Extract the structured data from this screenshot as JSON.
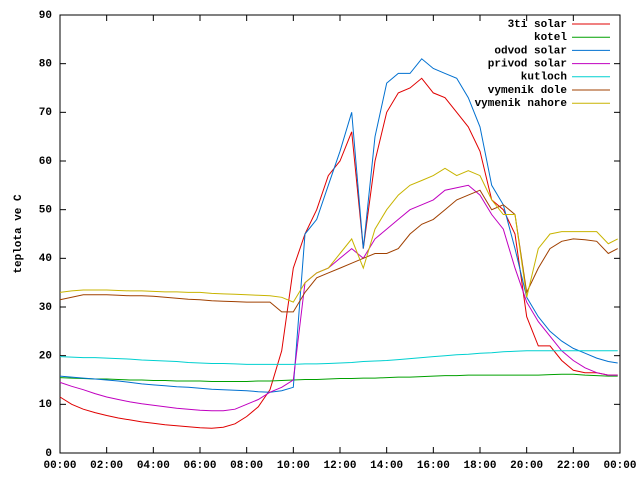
{
  "chart_data": {
    "type": "line",
    "y_label": "teplota ve C",
    "x": [
      0,
      0.5,
      1,
      1.5,
      2,
      2.5,
      3,
      3.5,
      4,
      4.5,
      5,
      5.5,
      6,
      6.5,
      7,
      7.5,
      8,
      8.5,
      9,
      9.5,
      10,
      10.5,
      11,
      11.5,
      12,
      12.5,
      13,
      13.5,
      14,
      14.5,
      15,
      15.5,
      16,
      16.5,
      17,
      17.5,
      18,
      18.5,
      19,
      19.5,
      20,
      20.5,
      21,
      21.5,
      22,
      22.5,
      23,
      23.5,
      23.9
    ],
    "xlim": [
      0,
      24
    ],
    "xticks": [
      {
        "value": 0,
        "label": "00:00"
      },
      {
        "value": 2,
        "label": "02:00"
      },
      {
        "value": 4,
        "label": "04:00"
      },
      {
        "value": 6,
        "label": "06:00"
      },
      {
        "value": 8,
        "label": "08:00"
      },
      {
        "value": 10,
        "label": "10:00"
      },
      {
        "value": 12,
        "label": "12:00"
      },
      {
        "value": 14,
        "label": "14:00"
      },
      {
        "value": 16,
        "label": "16:00"
      },
      {
        "value": 18,
        "label": "18:00"
      },
      {
        "value": 20,
        "label": "20:00"
      },
      {
        "value": 22,
        "label": "22:00"
      },
      {
        "value": 24,
        "label": "00:00"
      }
    ],
    "ylim": [
      0,
      90
    ],
    "yticks": [
      0,
      10,
      20,
      30,
      40,
      50,
      60,
      70,
      80,
      90
    ],
    "legend": "top-right",
    "series": [
      {
        "name": "3ti solar",
        "color": "#e00000",
        "values": [
          11.5,
          10,
          9,
          8.3,
          7.7,
          7.2,
          6.8,
          6.4,
          6.1,
          5.8,
          5.6,
          5.4,
          5.2,
          5.1,
          5.3,
          6,
          7.5,
          9.5,
          13,
          21,
          38,
          45,
          50,
          57,
          60,
          66,
          42,
          60,
          70,
          74,
          75,
          77,
          74,
          73,
          70,
          67,
          62,
          52,
          50,
          45,
          28,
          22,
          22,
          19,
          17,
          16.5,
          16.5,
          16,
          16
        ]
      },
      {
        "name": "kotel",
        "color": "#00a000",
        "values": [
          15.5,
          15.4,
          15.3,
          15.2,
          15.2,
          15.1,
          15,
          15,
          14.9,
          14.9,
          14.8,
          14.8,
          14.8,
          14.7,
          14.7,
          14.7,
          14.7,
          14.8,
          14.8,
          14.9,
          15,
          15.1,
          15.1,
          15.2,
          15.3,
          15.3,
          15.4,
          15.4,
          15.5,
          15.6,
          15.6,
          15.7,
          15.8,
          15.9,
          15.9,
          16,
          16,
          16,
          16,
          16,
          16,
          16,
          16.1,
          16.2,
          16.2,
          16,
          15.9,
          15.8,
          15.8
        ]
      },
      {
        "name": "odvod solar",
        "color": "#0070d0",
        "values": [
          15.8,
          15.6,
          15.4,
          15.2,
          15,
          14.8,
          14.5,
          14.2,
          14,
          13.8,
          13.6,
          13.5,
          13.3,
          13.1,
          13,
          12.9,
          12.8,
          12.6,
          12.5,
          12.8,
          13.5,
          45,
          48,
          55,
          62,
          70,
          42,
          65,
          76,
          78,
          78,
          81,
          79,
          78,
          77,
          73,
          67,
          55,
          51,
          42,
          32,
          28,
          25,
          23,
          21.5,
          20.5,
          19.5,
          18.8,
          18.5
        ]
      },
      {
        "name": "privod solar",
        "color": "#c000c0",
        "values": [
          14.5,
          13.7,
          13,
          12.2,
          11.5,
          11,
          10.5,
          10.1,
          9.8,
          9.5,
          9.2,
          9,
          8.8,
          8.7,
          8.7,
          9,
          10,
          11,
          12.5,
          13.5,
          15,
          35,
          37,
          38,
          40,
          42,
          40,
          44,
          46,
          48,
          50,
          51,
          52,
          54,
          54.5,
          55,
          53,
          49,
          46,
          38,
          31,
          27,
          24,
          21,
          19,
          17.5,
          16.5,
          16,
          16
        ]
      },
      {
        "name": "kutloch",
        "color": "#00d0d0",
        "values": [
          19.8,
          19.7,
          19.6,
          19.6,
          19.5,
          19.4,
          19.3,
          19.1,
          19,
          18.9,
          18.8,
          18.6,
          18.5,
          18.4,
          18.4,
          18.3,
          18.2,
          18.2,
          18.2,
          18.2,
          18.2,
          18.3,
          18.3,
          18.4,
          18.5,
          18.6,
          18.8,
          18.9,
          19,
          19.2,
          19.4,
          19.6,
          19.8,
          20,
          20.2,
          20.3,
          20.5,
          20.6,
          20.8,
          20.9,
          21,
          21,
          21,
          21,
          21,
          21,
          21,
          21,
          21
        ]
      },
      {
        "name": "vymenik dole",
        "color": "#a04000",
        "values": [
          31.5,
          32,
          32.5,
          32.5,
          32.5,
          32.4,
          32.3,
          32.3,
          32.2,
          32,
          31.8,
          31.6,
          31.5,
          31.3,
          31.2,
          31.1,
          31,
          31,
          31,
          29,
          29,
          33,
          36,
          37,
          38,
          39,
          40,
          41,
          41,
          42,
          45,
          47,
          48,
          50,
          52,
          53,
          54,
          50,
          51,
          49,
          33,
          38,
          42,
          43.5,
          44,
          43.8,
          43.5,
          41,
          42
        ]
      },
      {
        "name": "vymenik nahore",
        "color": "#c8b400",
        "values": [
          33,
          33.3,
          33.5,
          33.5,
          33.5,
          33.4,
          33.3,
          33.3,
          33.2,
          33.1,
          33.1,
          33,
          33,
          32.8,
          32.7,
          32.6,
          32.5,
          32.4,
          32.3,
          32,
          31,
          35,
          37,
          38,
          41,
          44,
          38,
          46,
          50,
          53,
          55,
          56,
          57,
          58.5,
          57,
          58,
          57,
          52,
          49,
          49,
          32,
          42,
          45,
          45.5,
          45.5,
          45.5,
          45.5,
          43,
          44
        ]
      }
    ]
  }
}
